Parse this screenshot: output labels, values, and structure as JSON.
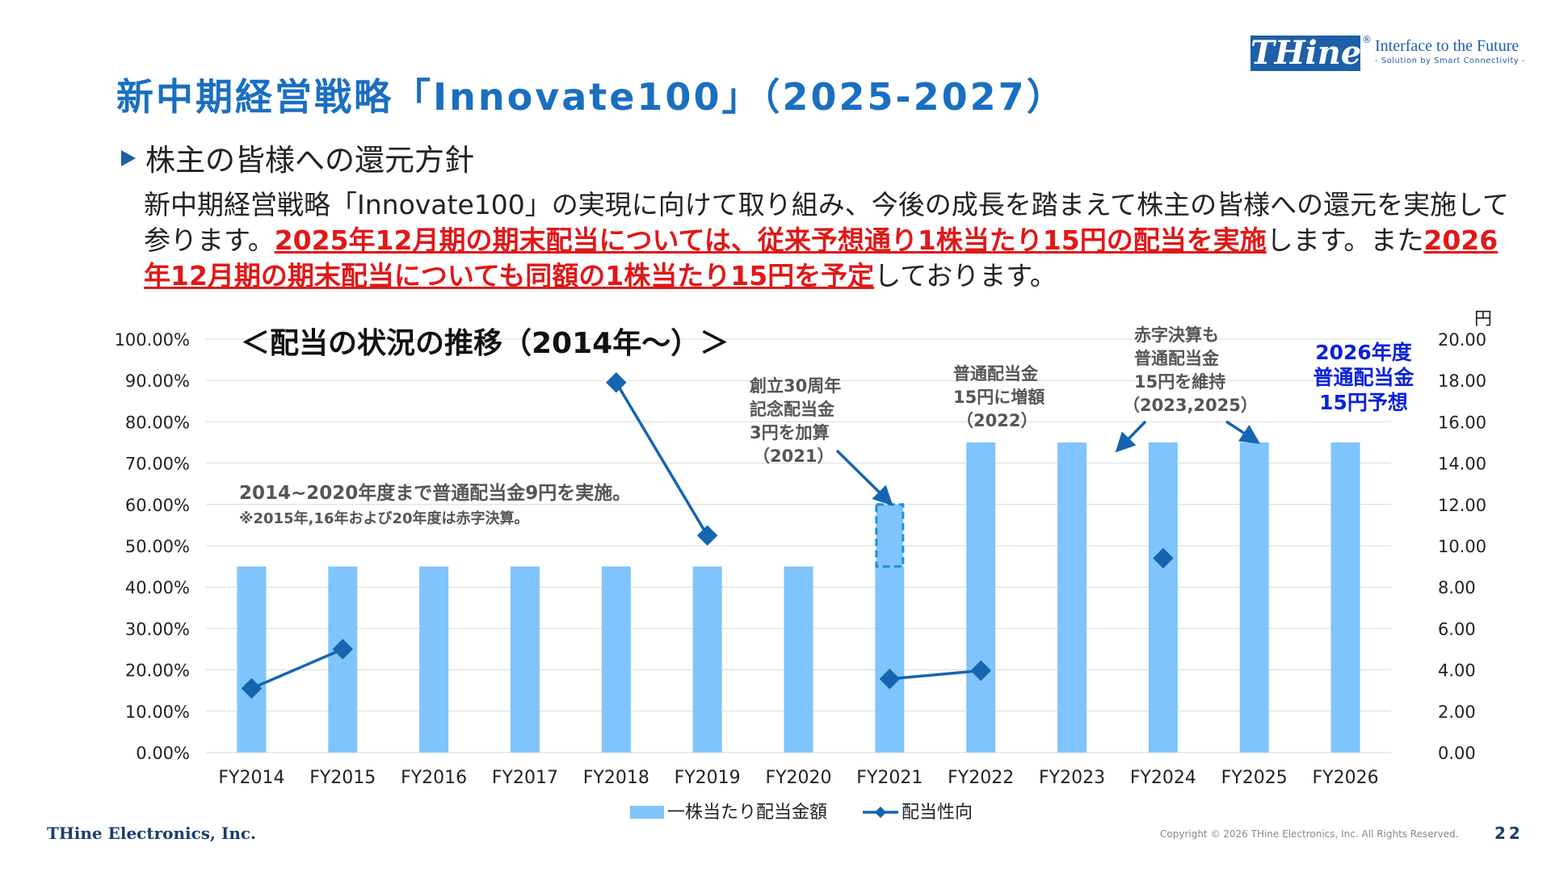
{
  "header": {
    "title": "新中期経営戦略「Innovate100」（2025-2027）",
    "logo_text": "THine",
    "logo_reg": "®",
    "tagline": "Interface to the Future",
    "tagline_sub": "- Solution by Smart Connectivity -"
  },
  "section": {
    "heading": "株主の皆様への還元方針",
    "body_part1": "新中期経営戦略「Innovate100」の実現に向けて取り組み、今後の成長を踏まえて株主の皆様への還元を実施して参ります。",
    "body_highlight1": "2025年12月期の期末配当については、従来予想通り1株当たり15円の配当を実施",
    "body_part2": "します。また",
    "body_highlight2": "2026年12月期の期末配当についても同額の1株当たり15円を予定",
    "body_part3": "しております。"
  },
  "chart_data": {
    "type": "bar",
    "title": "＜配当の状況の推移（2014年～）＞",
    "categories": [
      "FY2014",
      "FY2015",
      "FY2016",
      "FY2017",
      "FY2018",
      "FY2019",
      "FY2020",
      "FY2021",
      "FY2022",
      "FY2023",
      "FY2024",
      "FY2025",
      "FY2026"
    ],
    "left_axis": {
      "ylim": [
        0,
        100
      ],
      "ticks": [
        "0.00%",
        "10.00%",
        "20.00%",
        "30.00%",
        "40.00%",
        "50.00%",
        "60.00%",
        "70.00%",
        "80.00%",
        "90.00%",
        "100.00%"
      ]
    },
    "right_axis": {
      "unit": "円",
      "ylim": [
        0,
        20
      ],
      "ticks": [
        "0.00",
        "2.00",
        "4.00",
        "6.00",
        "8.00",
        "10.00",
        "12.00",
        "14.00",
        "16.00",
        "18.00",
        "20.00"
      ]
    },
    "series": [
      {
        "name": "一株当たり配当金額",
        "axis": "right",
        "values": [
          9,
          9,
          9,
          9,
          9,
          9,
          9,
          9,
          15,
          15,
          15,
          15,
          15
        ],
        "extra": {
          "category": "FY2021",
          "from": 9,
          "to": 12
        }
      },
      {
        "name": "配当性向",
        "axis": "left",
        "values": [
          15.5,
          25.0,
          null,
          null,
          89.5,
          52.5,
          null,
          17.8,
          19.8,
          null,
          47.0,
          null,
          null
        ]
      }
    ],
    "annotations": [
      {
        "lines": [
          "2014~2020年度まで普通配当金9円を実施。"
        ]
      },
      {
        "lines": [
          "※2015年,16年および20年度は赤字決算。"
        ]
      },
      {
        "lines": [
          "創立30周年",
          "記念配当金",
          "3円を加算",
          "（2021）"
        ]
      },
      {
        "lines": [
          "普通配当金",
          "15円に増額",
          "（2022）"
        ]
      },
      {
        "lines": [
          "赤字決算も",
          "普通配当金",
          "15円を維持",
          "（2023,2025）"
        ]
      },
      {
        "lines": [
          "2026年度",
          "普通配当金",
          "15円予想"
        ]
      }
    ],
    "legend_position": "bottom",
    "grid": true,
    "colors": {
      "bar": "#7fc4fc",
      "line": "#1565b0",
      "extra_border": "#1e90e0",
      "forecast_text": "#0a22d8"
    }
  },
  "footer": {
    "company": "THine Electronics, Inc.",
    "copyright": "Copyright © 2026 THine Electronics, Inc. All Rights Reserved.",
    "page": "22"
  }
}
